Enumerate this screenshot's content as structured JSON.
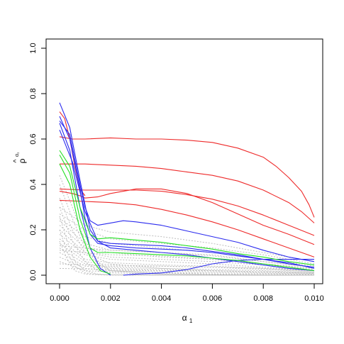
{
  "chart_data": {
    "type": "line",
    "title": "",
    "xlabel": "α",
    "xlabel_sub": "1",
    "ylabel": "ρ",
    "ylabel_hat": "^",
    "ylabel_sup": "α₁",
    "xlim": [
      0,
      0.01
    ],
    "ylim": [
      0,
      1.0
    ],
    "x_ticks": [
      0.0,
      0.002,
      0.004,
      0.006,
      0.008,
      0.01
    ],
    "x_tick_labels": [
      "0.000",
      "0.002",
      "0.004",
      "0.006",
      "0.008",
      "0.010"
    ],
    "y_ticks": [
      0.0,
      0.2,
      0.4,
      0.6,
      0.8,
      1.0
    ],
    "y_tick_labels": [
      "0.0",
      "0.2",
      "0.4",
      "0.6",
      "0.8",
      "1.0"
    ],
    "grid": false,
    "legend": "none",
    "colors": {
      "red": "#ee2a2a",
      "blue": "#2b2bee",
      "green": "#22e022",
      "gray": "#bdbdbd"
    },
    "series": [
      {
        "color": "red",
        "style": "solid",
        "x": [
          0,
          0.0005,
          0.001,
          0.002,
          0.003,
          0.004,
          0.005,
          0.006,
          0.007,
          0.008,
          0.0085,
          0.009,
          0.0095,
          0.0098,
          0.01
        ],
        "y": [
          0.61,
          0.6,
          0.6,
          0.605,
          0.6,
          0.6,
          0.595,
          0.585,
          0.56,
          0.52,
          0.48,
          0.43,
          0.37,
          0.31,
          0.255
        ]
      },
      {
        "color": "red",
        "style": "solid",
        "x": [
          0,
          0.001,
          0.002,
          0.003,
          0.004,
          0.005,
          0.006,
          0.007,
          0.008,
          0.009,
          0.0095,
          0.01
        ],
        "y": [
          0.49,
          0.49,
          0.485,
          0.48,
          0.47,
          0.455,
          0.44,
          0.415,
          0.375,
          0.32,
          0.28,
          0.23
        ]
      },
      {
        "color": "red",
        "style": "solid",
        "x": [
          0,
          0.001,
          0.002,
          0.003,
          0.004,
          0.005,
          0.006,
          0.007,
          0.008,
          0.009,
          0.01
        ],
        "y": [
          0.38,
          0.375,
          0.375,
          0.375,
          0.37,
          0.355,
          0.335,
          0.305,
          0.265,
          0.22,
          0.175
        ]
      },
      {
        "color": "red",
        "style": "solid",
        "x": [
          0,
          0.0005,
          0.0008,
          0.001,
          0.0015,
          0.002,
          0.003,
          0.004,
          0.005,
          0.006,
          0.007,
          0.008,
          0.009,
          0.01
        ],
        "y": [
          0.37,
          0.36,
          0.35,
          0.34,
          0.345,
          0.36,
          0.38,
          0.38,
          0.36,
          0.32,
          0.27,
          0.22,
          0.18,
          0.135
        ]
      },
      {
        "color": "red",
        "style": "solid",
        "x": [
          0,
          0.001,
          0.002,
          0.003,
          0.004,
          0.005,
          0.006,
          0.007,
          0.008,
          0.009,
          0.01
        ],
        "y": [
          0.33,
          0.325,
          0.32,
          0.31,
          0.29,
          0.265,
          0.235,
          0.2,
          0.16,
          0.12,
          0.08
        ]
      },
      {
        "color": "red",
        "style": "solid",
        "x": [
          0,
          0.0002,
          0.0004,
          0.0006,
          0.0008,
          0.001
        ],
        "y": [
          0.72,
          0.69,
          0.6,
          0.48,
          0.38,
          0.35
        ]
      },
      {
        "color": "blue",
        "style": "solid",
        "x": [
          0,
          0.0004,
          0.0008,
          0.001,
          0.0012,
          0.0015,
          0.002,
          0.0025,
          0.003,
          0.004,
          0.005,
          0.006,
          0.007,
          0.008,
          0.009,
          0.01
        ],
        "y": [
          0.68,
          0.62,
          0.4,
          0.3,
          0.24,
          0.22,
          0.23,
          0.24,
          0.235,
          0.22,
          0.195,
          0.17,
          0.145,
          0.11,
          0.08,
          0.06
        ]
      },
      {
        "color": "blue",
        "style": "solid",
        "x": [
          0,
          0.0004,
          0.0008,
          0.001,
          0.0012,
          0.0015,
          0.002,
          0.003,
          0.004,
          0.005,
          0.006,
          0.007,
          0.008,
          0.009,
          0.01
        ],
        "y": [
          0.7,
          0.6,
          0.38,
          0.25,
          0.18,
          0.14,
          0.13,
          0.12,
          0.115,
          0.11,
          0.1,
          0.085,
          0.07,
          0.05,
          0.035
        ]
      },
      {
        "color": "blue",
        "style": "solid",
        "x": [
          0,
          0.0004,
          0.0008,
          0.0012,
          0.0015,
          0.002,
          0.003,
          0.004,
          0.005,
          0.006,
          0.007,
          0.008,
          0.009,
          0.01
        ],
        "y": [
          0.76,
          0.65,
          0.42,
          0.2,
          0.15,
          0.14,
          0.135,
          0.13,
          0.12,
          0.105,
          0.09,
          0.07,
          0.055,
          0.03
        ]
      },
      {
        "color": "blue",
        "style": "solid",
        "x": [
          0,
          0.0005,
          0.001,
          0.0015,
          0.002,
          0.003,
          0.004,
          0.005,
          0.006,
          0.007,
          0.008,
          0.009,
          0.01
        ],
        "y": [
          0.64,
          0.5,
          0.28,
          0.15,
          0.12,
          0.11,
          0.1,
          0.09,
          0.075,
          0.06,
          0.045,
          0.03,
          0.02
        ]
      },
      {
        "color": "blue",
        "style": "solid",
        "x": [
          0,
          0.0004,
          0.0008,
          0.0012,
          0.0016,
          0.002
        ],
        "y": [
          0.67,
          0.55,
          0.3,
          0.12,
          0.03,
          0.0
        ]
      },
      {
        "color": "blue",
        "style": "solid",
        "x": [
          0.0025,
          0.003,
          0.004,
          0.005,
          0.006,
          0.007,
          0.008,
          0.009,
          0.01
        ],
        "y": [
          0.0,
          0.005,
          0.01,
          0.025,
          0.05,
          0.065,
          0.07,
          0.07,
          0.07
        ]
      },
      {
        "color": "green",
        "style": "solid",
        "x": [
          0,
          0.0004,
          0.0008,
          0.0012,
          0.0015,
          0.002,
          0.003,
          0.004,
          0.005,
          0.006,
          0.007,
          0.008,
          0.009,
          0.01
        ],
        "y": [
          0.55,
          0.48,
          0.3,
          0.18,
          0.16,
          0.165,
          0.155,
          0.145,
          0.13,
          0.115,
          0.095,
          0.08,
          0.06,
          0.045
        ]
      },
      {
        "color": "green",
        "style": "solid",
        "x": [
          0,
          0.0004,
          0.0008,
          0.0012,
          0.0015,
          0.002,
          0.003,
          0.004,
          0.005,
          0.006,
          0.007,
          0.008,
          0.009,
          0.01
        ],
        "y": [
          0.53,
          0.45,
          0.25,
          0.12,
          0.1,
          0.1,
          0.095,
          0.09,
          0.085,
          0.075,
          0.065,
          0.05,
          0.035,
          0.02
        ]
      },
      {
        "color": "green",
        "style": "solid",
        "x": [
          0,
          0.0004,
          0.0008,
          0.0012,
          0.0016,
          0.002
        ],
        "y": [
          0.49,
          0.4,
          0.2,
          0.08,
          0.02,
          0.005
        ]
      },
      {
        "color": "gray",
        "style": "dotted",
        "x": [
          0,
          0.001,
          0.002,
          0.004,
          0.006,
          0.008,
          0.01
        ],
        "y": [
          0.3,
          0.22,
          0.19,
          0.17,
          0.14,
          0.1,
          0.06
        ]
      },
      {
        "color": "gray",
        "style": "dotted",
        "x": [
          0,
          0.001,
          0.002,
          0.004,
          0.006,
          0.008,
          0.01
        ],
        "y": [
          0.27,
          0.2,
          0.16,
          0.14,
          0.12,
          0.09,
          0.05
        ]
      },
      {
        "color": "gray",
        "style": "dotted",
        "x": [
          0,
          0.001,
          0.002,
          0.004,
          0.006,
          0.008,
          0.01
        ],
        "y": [
          0.25,
          0.17,
          0.14,
          0.12,
          0.1,
          0.07,
          0.04
        ]
      },
      {
        "color": "gray",
        "style": "dotted",
        "x": [
          0,
          0.001,
          0.002,
          0.004,
          0.006,
          0.008,
          0.01
        ],
        "y": [
          0.24,
          0.14,
          0.11,
          0.1,
          0.09,
          0.06,
          0.035
        ]
      },
      {
        "color": "gray",
        "style": "dotted",
        "x": [
          0,
          0.001,
          0.002,
          0.004,
          0.006,
          0.008,
          0.01
        ],
        "y": [
          0.22,
          0.12,
          0.1,
          0.08,
          0.07,
          0.05,
          0.03
        ]
      },
      {
        "color": "gray",
        "style": "dotted",
        "x": [
          0,
          0.001,
          0.002,
          0.004,
          0.006,
          0.008,
          0.01
        ],
        "y": [
          0.2,
          0.1,
          0.08,
          0.07,
          0.06,
          0.045,
          0.025
        ]
      },
      {
        "color": "gray",
        "style": "dotted",
        "x": [
          0,
          0.001,
          0.002,
          0.004,
          0.006,
          0.008,
          0.01
        ],
        "y": [
          0.18,
          0.09,
          0.07,
          0.06,
          0.05,
          0.035,
          0.02
        ]
      },
      {
        "color": "gray",
        "style": "dotted",
        "x": [
          0,
          0.001,
          0.002,
          0.004,
          0.006,
          0.008,
          0.01
        ],
        "y": [
          0.16,
          0.07,
          0.055,
          0.045,
          0.04,
          0.03,
          0.015
        ]
      },
      {
        "color": "gray",
        "style": "dotted",
        "x": [
          0,
          0.001,
          0.002,
          0.004,
          0.006,
          0.008,
          0.01
        ],
        "y": [
          0.14,
          0.06,
          0.045,
          0.04,
          0.035,
          0.025,
          0.015
        ]
      },
      {
        "color": "gray",
        "style": "dotted",
        "x": [
          0,
          0.001,
          0.002,
          0.004,
          0.006,
          0.008,
          0.01
        ],
        "y": [
          0.12,
          0.05,
          0.035,
          0.03,
          0.025,
          0.02,
          0.01
        ]
      },
      {
        "color": "gray",
        "style": "dotted",
        "x": [
          0,
          0.001,
          0.002,
          0.004,
          0.006,
          0.008,
          0.01
        ],
        "y": [
          0.1,
          0.04,
          0.03,
          0.025,
          0.02,
          0.015,
          0.008
        ]
      },
      {
        "color": "gray",
        "style": "dotted",
        "x": [
          0,
          0.001,
          0.002,
          0.004,
          0.006,
          0.008,
          0.01
        ],
        "y": [
          0.08,
          0.03,
          0.02,
          0.018,
          0.015,
          0.01,
          0.006
        ]
      },
      {
        "color": "gray",
        "style": "dotted",
        "x": [
          0,
          0.001,
          0.002,
          0.004,
          0.006,
          0.008,
          0.01
        ],
        "y": [
          0.06,
          0.02,
          0.015,
          0.012,
          0.01,
          0.008,
          0.004
        ]
      },
      {
        "color": "gray",
        "style": "dotted",
        "x": [
          0,
          0.0005,
          0.001,
          0.002,
          0.004,
          0.006,
          0.008,
          0.01
        ],
        "y": [
          0.34,
          0.2,
          0.1,
          0.05,
          0.03,
          0.02,
          0.015,
          0.01
        ]
      },
      {
        "color": "gray",
        "style": "dotted",
        "x": [
          0,
          0.0005,
          0.001,
          0.0015,
          0.002,
          0.004,
          0.006,
          0.008,
          0.01
        ],
        "y": [
          0.4,
          0.25,
          0.12,
          0.05,
          0.02,
          0.01,
          0.005,
          0.003,
          0.002
        ]
      },
      {
        "color": "gray",
        "style": "dotted",
        "x": [
          0,
          0.0005,
          0.001,
          0.0015,
          0.002,
          0.004,
          0.006,
          0.008,
          0.01
        ],
        "y": [
          0.44,
          0.3,
          0.15,
          0.06,
          0.02,
          0.005,
          0.002,
          0.001,
          0.0
        ]
      },
      {
        "color": "gray",
        "style": "dotted",
        "x": [
          0,
          0.0005,
          0.001,
          0.0015,
          0.002,
          0.004,
          0.006,
          0.008,
          0.01
        ],
        "y": [
          0.3,
          0.15,
          0.06,
          0.02,
          0.01,
          0.005,
          0.003,
          0.002,
          0.001
        ]
      },
      {
        "color": "gray",
        "style": "dotted",
        "x": [
          0,
          0.0003,
          0.0006,
          0.001,
          0.0015,
          0.002,
          0.004,
          0.01
        ],
        "y": [
          0.26,
          0.15,
          0.06,
          0.02,
          0.005,
          0.002,
          0.001,
          0.0
        ]
      },
      {
        "color": "gray",
        "style": "dotted",
        "x": [
          0,
          0.0003,
          0.0006,
          0.001,
          0.0015,
          0.002,
          0.004,
          0.01
        ],
        "y": [
          0.2,
          0.1,
          0.04,
          0.01,
          0.003,
          0.001,
          0.0,
          0.0
        ]
      },
      {
        "color": "gray",
        "style": "dotted",
        "x": [
          0,
          0.0003,
          0.0006,
          0.001,
          0.0015,
          0.002,
          0.004,
          0.01
        ],
        "y": [
          0.15,
          0.07,
          0.02,
          0.005,
          0.002,
          0.001,
          0.0,
          0.0
        ]
      },
      {
        "color": "gray",
        "style": "dotted",
        "x": [
          0,
          0.002,
          0.004,
          0.006,
          0.008,
          0.01
        ],
        "y": [
          0.13,
          0.11,
          0.1,
          0.085,
          0.06,
          0.035
        ]
      },
      {
        "color": "gray",
        "style": "dotted",
        "x": [
          0,
          0.002,
          0.004,
          0.006,
          0.008,
          0.01
        ],
        "y": [
          0.11,
          0.09,
          0.085,
          0.07,
          0.05,
          0.03
        ]
      },
      {
        "color": "gray",
        "style": "dotted",
        "x": [
          0,
          0.002,
          0.004,
          0.006,
          0.008,
          0.01
        ],
        "y": [
          0.05,
          0.04,
          0.04,
          0.035,
          0.03,
          0.02
        ]
      },
      {
        "color": "gray",
        "style": "dotted",
        "x": [
          0,
          0.002,
          0.004,
          0.006,
          0.008,
          0.01
        ],
        "y": [
          0.03,
          0.025,
          0.02,
          0.02,
          0.015,
          0.01
        ]
      }
    ]
  }
}
